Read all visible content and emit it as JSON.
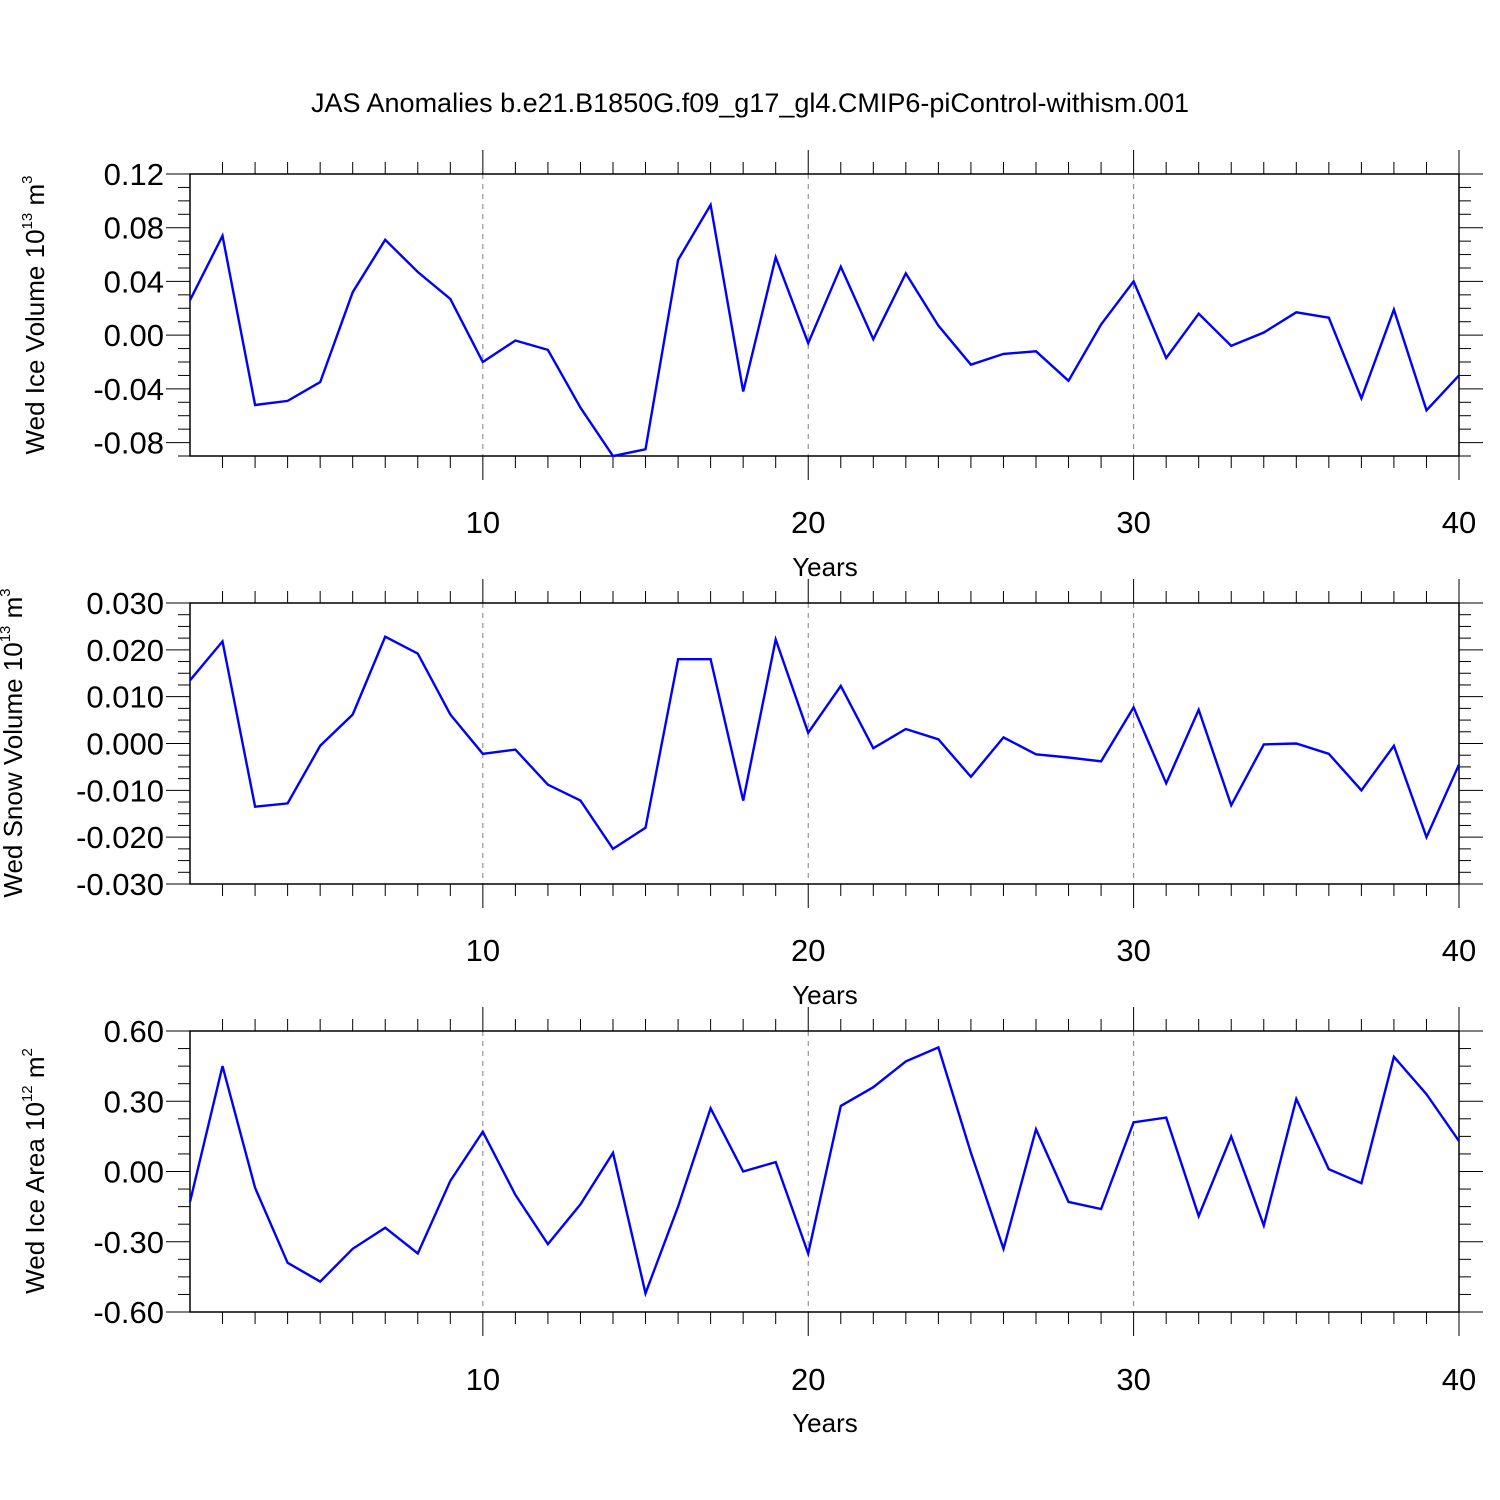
{
  "title": "JAS Anomalies b.e21.B1850G.f09_g17_gl4.CMIP6-piControl-withism.001",
  "colors": {
    "series": "#0000ff",
    "axis": "#000000",
    "grid": "#808080"
  },
  "chart_data": [
    {
      "type": "line",
      "ylabel": {
        "text": "Wed Ice Volume 10",
        "sup1": "13",
        "mid": " m",
        "sup2": "3"
      },
      "xlabel": "Years",
      "xlim": [
        1,
        40
      ],
      "ylim": [
        -0.09,
        0.12
      ],
      "xticks": [
        10,
        20,
        30,
        40
      ],
      "yticks": [
        -0.08,
        -0.04,
        0.0,
        0.04,
        0.08,
        0.12
      ],
      "ytick_labels": [
        "-0.08",
        "-0.04",
        "0.00",
        "0.04",
        "0.08",
        "0.12"
      ],
      "x": [
        1,
        2,
        3,
        4,
        5,
        6,
        7,
        8,
        9,
        10,
        11,
        12,
        13,
        14,
        15,
        16,
        17,
        18,
        19,
        20,
        21,
        22,
        23,
        24,
        25,
        26,
        27,
        28,
        29,
        30,
        31,
        32,
        33,
        34,
        35,
        36,
        37,
        38,
        39,
        40
      ],
      "values": [
        0.026,
        0.074,
        -0.052,
        -0.049,
        -0.035,
        0.032,
        0.071,
        0.047,
        0.027,
        -0.02,
        -0.004,
        -0.011,
        -0.054,
        -0.09,
        -0.085,
        0.056,
        0.097,
        -0.042,
        0.058,
        -0.006,
        0.051,
        -0.003,
        0.046,
        0.007,
        -0.022,
        -0.014,
        -0.012,
        -0.034,
        0.008,
        0.04,
        -0.017,
        0.016,
        -0.008,
        0.002,
        0.017,
        0.013,
        -0.047,
        0.019,
        -0.056,
        -0.03
      ]
    },
    {
      "type": "line",
      "ylabel": {
        "text": "Wed Snow Volume 10",
        "sup1": "13",
        "mid": " m",
        "sup2": "3"
      },
      "xlabel": "Years",
      "xlim": [
        1,
        40
      ],
      "ylim": [
        -0.03,
        0.03
      ],
      "xticks": [
        10,
        20,
        30,
        40
      ],
      "yticks": [
        -0.03,
        -0.02,
        -0.01,
        0.0,
        0.01,
        0.02,
        0.03
      ],
      "ytick_labels": [
        "-0.030",
        "-0.020",
        "-0.010",
        "0.000",
        "0.010",
        "0.020",
        "0.030"
      ],
      "x": [
        1,
        2,
        3,
        4,
        5,
        6,
        7,
        8,
        9,
        10,
        11,
        12,
        13,
        14,
        15,
        16,
        17,
        18,
        19,
        20,
        21,
        22,
        23,
        24,
        25,
        26,
        27,
        28,
        29,
        30,
        31,
        32,
        33,
        34,
        35,
        36,
        37,
        38,
        39,
        40
      ],
      "values": [
        0.0135,
        0.0218,
        -0.0135,
        -0.0128,
        -0.0005,
        0.0062,
        0.0228,
        0.0192,
        0.0062,
        -0.0022,
        -0.0013,
        -0.0088,
        -0.0122,
        -0.0225,
        -0.018,
        0.018,
        0.018,
        -0.0122,
        0.0222,
        0.0023,
        0.0123,
        -0.001,
        0.0031,
        0.0009,
        -0.0071,
        0.0013,
        -0.0023,
        -0.003,
        -0.0038,
        0.0077,
        -0.0085,
        0.0072,
        -0.0132,
        -0.0002,
        0.0,
        -0.0022,
        -0.01,
        -0.0005,
        -0.02,
        -0.0045
      ]
    },
    {
      "type": "line",
      "ylabel": {
        "text": "Wed Ice Area 10",
        "sup1": "12",
        "mid": " m",
        "sup2": "2"
      },
      "xlabel": "Years",
      "xlim": [
        1,
        40
      ],
      "ylim": [
        -0.6,
        0.6
      ],
      "xticks": [
        10,
        20,
        30,
        40
      ],
      "yticks": [
        -0.6,
        -0.3,
        0.0,
        0.3,
        0.6
      ],
      "ytick_labels": [
        "-0.60",
        "-0.30",
        "0.00",
        "0.30",
        "0.60"
      ],
      "x": [
        1,
        2,
        3,
        4,
        5,
        6,
        7,
        8,
        9,
        10,
        11,
        12,
        13,
        14,
        15,
        16,
        17,
        18,
        19,
        20,
        21,
        22,
        23,
        24,
        25,
        26,
        27,
        28,
        29,
        30,
        31,
        32,
        33,
        34,
        35,
        36,
        37,
        38,
        39,
        40
      ],
      "values": [
        -0.13,
        0.45,
        -0.07,
        -0.39,
        -0.47,
        -0.33,
        -0.24,
        -0.35,
        -0.04,
        0.17,
        -0.1,
        -0.31,
        -0.14,
        0.08,
        -0.52,
        -0.15,
        0.27,
        0.0,
        0.04,
        -0.35,
        0.28,
        0.36,
        0.47,
        0.53,
        0.08,
        -0.33,
        0.18,
        -0.13,
        -0.16,
        0.21,
        0.23,
        -0.19,
        0.15,
        -0.23,
        0.31,
        0.01,
        -0.05,
        0.49,
        0.33,
        0.13
      ]
    }
  ]
}
